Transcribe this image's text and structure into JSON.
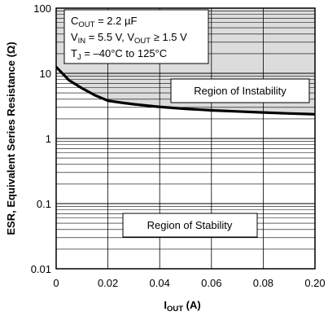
{
  "chart_data": {
    "type": "line",
    "title": "",
    "xlabel": {
      "main": "I",
      "sub": "OUT",
      "unit": " (A)"
    },
    "ylabel": "ESR, Equivalent Series Resistance (Ω)",
    "x_scale": "linear",
    "y_scale": "log",
    "xlim": [
      0,
      0.2
    ],
    "ylim": [
      0.01,
      100
    ],
    "x_ticks": [
      0,
      0.02,
      0.04,
      0.06,
      0.08,
      0.2
    ],
    "x_tick_labels": [
      "0",
      "0.02",
      "0.04",
      "0.06",
      "0.08",
      "0.20"
    ],
    "y_ticks": [
      0.01,
      0.1,
      1,
      10,
      100
    ],
    "y_tick_labels": [
      "0.01",
      "0.1",
      "1",
      "10",
      "100"
    ],
    "x_tick_positions": [
      0,
      0.02,
      0.04,
      0.06,
      0.08,
      0.1
    ],
    "grid": true,
    "series": [
      {
        "x": [
          0,
          0.005,
          0.01,
          0.015,
          0.02,
          0.025,
          0.03,
          0.04,
          0.05,
          0.06,
          0.07,
          0.08,
          0.09,
          0.1
        ],
        "y": [
          12.5,
          7.8,
          5.9,
          4.6,
          3.8,
          3.55,
          3.35,
          3.05,
          2.85,
          2.7,
          2.6,
          2.5,
          2.42,
          2.35
        ]
      }
    ],
    "annotations": {
      "instability": "Region of Instability",
      "stability": "Region of Stability"
    },
    "conditions": [
      {
        "parts": [
          [
            "C",
            ""
          ],
          [
            "OUT",
            "sub"
          ],
          [
            " = 2.2 µF",
            ""
          ]
        ]
      },
      {
        "parts": [
          [
            "V",
            ""
          ],
          [
            "IN",
            "sub"
          ],
          [
            " = 5.5 V, V",
            ""
          ],
          [
            "OUT",
            "sub"
          ],
          [
            " ≥ 1.5 V",
            ""
          ]
        ]
      },
      {
        "parts": [
          [
            "T",
            ""
          ],
          [
            "J",
            "sub"
          ],
          [
            " = –40°C to 125°C",
            ""
          ]
        ]
      }
    ]
  }
}
